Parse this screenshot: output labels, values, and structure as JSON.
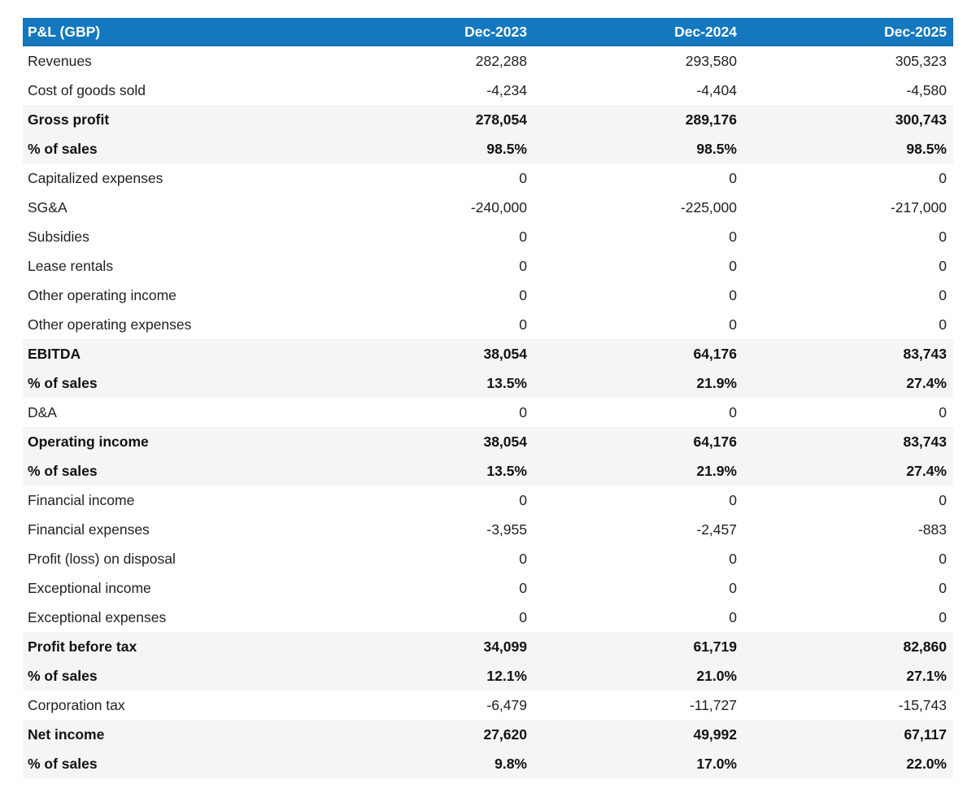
{
  "table": {
    "header": {
      "label": "P&L (GBP)",
      "columns": [
        "Dec-2023",
        "Dec-2024",
        "Dec-2025"
      ]
    },
    "rows": [
      {
        "label": "Revenues",
        "values": [
          "282,288",
          "293,580",
          "305,323"
        ],
        "emphasis": false
      },
      {
        "label": "Cost of goods sold",
        "values": [
          "-4,234",
          "-4,404",
          "-4,580"
        ],
        "emphasis": false
      },
      {
        "label": "Gross profit",
        "values": [
          "278,054",
          "289,176",
          "300,743"
        ],
        "emphasis": true
      },
      {
        "label": "% of sales",
        "values": [
          "98.5%",
          "98.5%",
          "98.5%"
        ],
        "emphasis": true
      },
      {
        "label": "Capitalized expenses",
        "values": [
          "0",
          "0",
          "0"
        ],
        "emphasis": false
      },
      {
        "label": "SG&A",
        "values": [
          "-240,000",
          "-225,000",
          "-217,000"
        ],
        "emphasis": false
      },
      {
        "label": "Subsidies",
        "values": [
          "0",
          "0",
          "0"
        ],
        "emphasis": false
      },
      {
        "label": "Lease rentals",
        "values": [
          "0",
          "0",
          "0"
        ],
        "emphasis": false
      },
      {
        "label": "Other operating income",
        "values": [
          "0",
          "0",
          "0"
        ],
        "emphasis": false
      },
      {
        "label": "Other operating expenses",
        "values": [
          "0",
          "0",
          "0"
        ],
        "emphasis": false
      },
      {
        "label": "EBITDA",
        "values": [
          "38,054",
          "64,176",
          "83,743"
        ],
        "emphasis": true
      },
      {
        "label": "% of sales",
        "values": [
          "13.5%",
          "21.9%",
          "27.4%"
        ],
        "emphasis": true
      },
      {
        "label": "D&A",
        "values": [
          "0",
          "0",
          "0"
        ],
        "emphasis": false
      },
      {
        "label": "Operating income",
        "values": [
          "38,054",
          "64,176",
          "83,743"
        ],
        "emphasis": true
      },
      {
        "label": "% of sales",
        "values": [
          "13.5%",
          "21.9%",
          "27.4%"
        ],
        "emphasis": true
      },
      {
        "label": "Financial income",
        "values": [
          "0",
          "0",
          "0"
        ],
        "emphasis": false
      },
      {
        "label": "Financial expenses",
        "values": [
          "-3,955",
          "-2,457",
          "-883"
        ],
        "emphasis": false
      },
      {
        "label": "Profit (loss) on disposal",
        "values": [
          "0",
          "0",
          "0"
        ],
        "emphasis": false
      },
      {
        "label": "Exceptional income",
        "values": [
          "0",
          "0",
          "0"
        ],
        "emphasis": false
      },
      {
        "label": "Exceptional expenses",
        "values": [
          "0",
          "0",
          "0"
        ],
        "emphasis": false
      },
      {
        "label": "Profit before tax",
        "values": [
          "34,099",
          "61,719",
          "82,860"
        ],
        "emphasis": true
      },
      {
        "label": "% of sales",
        "values": [
          "12.1%",
          "21.0%",
          "27.1%"
        ],
        "emphasis": true
      },
      {
        "label": "Corporation tax",
        "values": [
          "-6,479",
          "-11,727",
          "-15,743"
        ],
        "emphasis": false
      },
      {
        "label": "Net income",
        "values": [
          "27,620",
          "49,992",
          "67,117"
        ],
        "emphasis": true
      },
      {
        "label": "% of sales",
        "values": [
          "9.8%",
          "17.0%",
          "22.0%"
        ],
        "emphasis": true
      }
    ],
    "colors": {
      "header_bg": "#1478be",
      "header_text": "#ffffff",
      "row_bg": "#ffffff",
      "row_emphasis_bg": "#f5f5f5",
      "text": "#202124"
    }
  },
  "chart_data": {
    "type": "table",
    "title": "P&L (GBP)",
    "columns": [
      "Dec-2023",
      "Dec-2024",
      "Dec-2025"
    ],
    "rows": [
      {
        "label": "Revenues",
        "values": [
          282288,
          293580,
          305323
        ]
      },
      {
        "label": "Cost of goods sold",
        "values": [
          -4234,
          -4404,
          -4580
        ]
      },
      {
        "label": "Gross profit",
        "values": [
          278054,
          289176,
          300743
        ]
      },
      {
        "label": "% of sales (gross profit)",
        "values": [
          98.5,
          98.5,
          98.5
        ],
        "unit": "%"
      },
      {
        "label": "Capitalized expenses",
        "values": [
          0,
          0,
          0
        ]
      },
      {
        "label": "SG&A",
        "values": [
          -240000,
          -225000,
          -217000
        ]
      },
      {
        "label": "Subsidies",
        "values": [
          0,
          0,
          0
        ]
      },
      {
        "label": "Lease rentals",
        "values": [
          0,
          0,
          0
        ]
      },
      {
        "label": "Other operating income",
        "values": [
          0,
          0,
          0
        ]
      },
      {
        "label": "Other operating expenses",
        "values": [
          0,
          0,
          0
        ]
      },
      {
        "label": "EBITDA",
        "values": [
          38054,
          64176,
          83743
        ]
      },
      {
        "label": "% of sales (EBITDA)",
        "values": [
          13.5,
          21.9,
          27.4
        ],
        "unit": "%"
      },
      {
        "label": "D&A",
        "values": [
          0,
          0,
          0
        ]
      },
      {
        "label": "Operating income",
        "values": [
          38054,
          64176,
          83743
        ]
      },
      {
        "label": "% of sales (operating income)",
        "values": [
          13.5,
          21.9,
          27.4
        ],
        "unit": "%"
      },
      {
        "label": "Financial income",
        "values": [
          0,
          0,
          0
        ]
      },
      {
        "label": "Financial expenses",
        "values": [
          -3955,
          -2457,
          -883
        ]
      },
      {
        "label": "Profit (loss) on disposal",
        "values": [
          0,
          0,
          0
        ]
      },
      {
        "label": "Exceptional income",
        "values": [
          0,
          0,
          0
        ]
      },
      {
        "label": "Exceptional expenses",
        "values": [
          0,
          0,
          0
        ]
      },
      {
        "label": "Profit before tax",
        "values": [
          34099,
          61719,
          82860
        ]
      },
      {
        "label": "% of sales (profit before tax)",
        "values": [
          12.1,
          21.0,
          27.1
        ],
        "unit": "%"
      },
      {
        "label": "Corporation tax",
        "values": [
          -6479,
          -11727,
          -15743
        ]
      },
      {
        "label": "Net income",
        "values": [
          27620,
          49992,
          67117
        ]
      },
      {
        "label": "% of sales (net income)",
        "values": [
          9.8,
          17.0,
          22.0
        ],
        "unit": "%"
      }
    ]
  }
}
